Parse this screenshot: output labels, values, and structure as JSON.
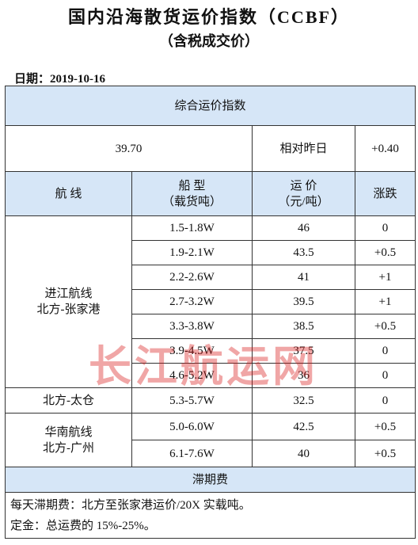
{
  "title": "国内沿海散货运价指数（CCBF）",
  "subtitle": "（含税成交价）",
  "date": "日期：2019-10-16",
  "index": {
    "label": "综合运价指数",
    "value": "39.70",
    "compare_label": "相对昨日",
    "change": "+0.40"
  },
  "table": {
    "headers": [
      [
        "航 线"
      ],
      [
        "船 型",
        "（载货吨）"
      ],
      [
        "运 价",
        "（元/吨）"
      ],
      [
        "涨跌"
      ]
    ],
    "groups": [
      {
        "route": [
          "进江航线",
          "北方-张家港"
        ],
        "rows": [
          [
            "1.5-1.8W",
            "46",
            "0"
          ],
          [
            "1.9-2.1W",
            "43.5",
            "+0.5"
          ],
          [
            "2.2-2.6W",
            "41",
            "+1"
          ],
          [
            "2.7-3.2W",
            "39.5",
            "+1"
          ],
          [
            "3.3-3.8W",
            "38.5",
            "+0.5"
          ],
          [
            "3.9-4.5W",
            "37.5",
            "0"
          ],
          [
            "4.6-5.2W",
            "36",
            "0"
          ]
        ]
      },
      {
        "route": [
          "北方-太仓"
        ],
        "rows": [
          [
            "5.3-5.7W",
            "32.5",
            "0"
          ]
        ]
      },
      {
        "route": [
          "华南航线",
          "北方-广州"
        ],
        "rows": [
          [
            "5.0-6.0W",
            "42.5",
            "+0.5"
          ],
          [
            "6.1-7.6W",
            "40",
            "+0.5"
          ]
        ]
      }
    ]
  },
  "demurrage": {
    "title": "滞期费",
    "notes": [
      "每天滞期费：北方至张家港运价/20X 实载吨。",
      "定金：总运费的 15%-25%。"
    ]
  },
  "watermark": "长江航运网"
}
